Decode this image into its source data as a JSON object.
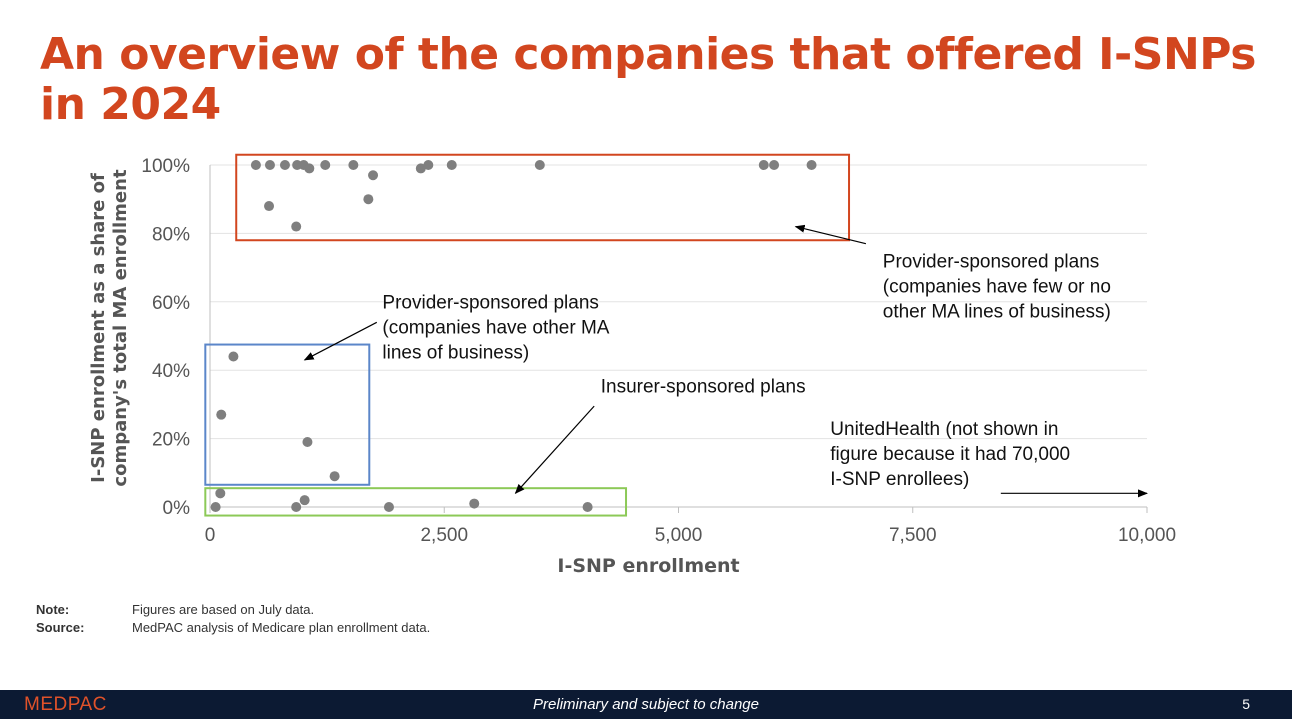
{
  "title": "An overview of the companies that offered I-SNPs in 2024",
  "notes": {
    "note_label": "Note:",
    "note_text": "Figures are based on July data.",
    "source_label": "Source:",
    "source_text": "MedPAC analysis of Medicare plan enrollment data."
  },
  "footer": {
    "logo": "MEDPAC",
    "center_text": "Preliminary and subject to change",
    "page_number": "5"
  },
  "colors": {
    "title": "#d2461f",
    "points": "#7f7f7f",
    "box_provider_few": "#d2461f",
    "box_provider_other": "#5b86c9",
    "box_insurer": "#8cc957",
    "footer_bg": "#0c1a33"
  },
  "chart_data": {
    "type": "scatter",
    "title": "",
    "xlabel": "I-SNP enrollment",
    "ylabel": "I-SNP enrollment as a share of company's total MA enrollment",
    "xlim": [
      0,
      10000
    ],
    "ylim": [
      0,
      100
    ],
    "x_ticks": [
      0,
      2500,
      5000,
      7500,
      10000
    ],
    "x_tick_labels": [
      "0",
      "2,500",
      "5,000",
      "7,500",
      "10,000"
    ],
    "y_ticks": [
      0,
      20,
      40,
      60,
      80,
      100
    ],
    "y_tick_labels": [
      "0%",
      "20%",
      "40%",
      "60%",
      "80%",
      "100%"
    ],
    "grid": "horizontal",
    "points": [
      {
        "x": 490,
        "y": 100
      },
      {
        "x": 640,
        "y": 100
      },
      {
        "x": 800,
        "y": 100
      },
      {
        "x": 930,
        "y": 100
      },
      {
        "x": 1000,
        "y": 100
      },
      {
        "x": 1060,
        "y": 99
      },
      {
        "x": 1230,
        "y": 100
      },
      {
        "x": 1530,
        "y": 100
      },
      {
        "x": 1740,
        "y": 97
      },
      {
        "x": 2250,
        "y": 99
      },
      {
        "x": 2330,
        "y": 100
      },
      {
        "x": 2580,
        "y": 100
      },
      {
        "x": 3520,
        "y": 100
      },
      {
        "x": 5910,
        "y": 100
      },
      {
        "x": 6020,
        "y": 100
      },
      {
        "x": 6420,
        "y": 100
      },
      {
        "x": 630,
        "y": 88
      },
      {
        "x": 1690,
        "y": 90
      },
      {
        "x": 920,
        "y": 82
      },
      {
        "x": 250,
        "y": 44
      },
      {
        "x": 120,
        "y": 27
      },
      {
        "x": 1040,
        "y": 19
      },
      {
        "x": 1330,
        "y": 9
      },
      {
        "x": 110,
        "y": 4
      },
      {
        "x": 60,
        "y": 0
      },
      {
        "x": 1010,
        "y": 2
      },
      {
        "x": 920,
        "y": 0
      },
      {
        "x": 1910,
        "y": 0
      },
      {
        "x": 2820,
        "y": 1
      },
      {
        "x": 4030,
        "y": 0
      }
    ],
    "annotations": [
      {
        "id": "provider-few",
        "lines": [
          "Provider-sponsored plans",
          "(companies have few or no",
          "other MA lines of business)"
        ],
        "box": {
          "x0": 280,
          "x1": 6820,
          "y0": 78,
          "y1": 103
        },
        "text_at": {
          "x": 7180,
          "y": 70
        },
        "arrow_from": {
          "x": 7000,
          "y": 77
        },
        "arrow_to": {
          "x": 6250,
          "y": 82
        }
      },
      {
        "id": "provider-other",
        "lines": [
          "Provider-sponsored plans",
          "(companies have other MA",
          "lines of business)"
        ],
        "box": {
          "x0": -50,
          "x1": 1700,
          "y0": 6.5,
          "y1": 47.5
        },
        "text_at": {
          "x": 1840,
          "y": 58
        },
        "arrow_from": {
          "x": 1780,
          "y": 54
        },
        "arrow_to": {
          "x": 1010,
          "y": 43
        }
      },
      {
        "id": "insurer",
        "lines": [
          "Insurer-sponsored plans"
        ],
        "box": {
          "x0": -50,
          "x1": 4440,
          "y0": -2.5,
          "y1": 5.5
        },
        "text_at": {
          "x": 4170,
          "y": 33.5
        },
        "arrow_from": {
          "x": 4100,
          "y": 29.5
        },
        "arrow_to": {
          "x": 3260,
          "y": 4
        }
      },
      {
        "id": "unitedhealth",
        "lines": [
          "UnitedHealth (not shown in",
          "figure because it had 70,000",
          "I-SNP enrollees)"
        ],
        "box": null,
        "text_at": {
          "x": 6620,
          "y": 21
        },
        "arrow_from": {
          "x": 8440,
          "y": 4
        },
        "arrow_to": {
          "x": 10000,
          "y": 4
        }
      }
    ]
  }
}
